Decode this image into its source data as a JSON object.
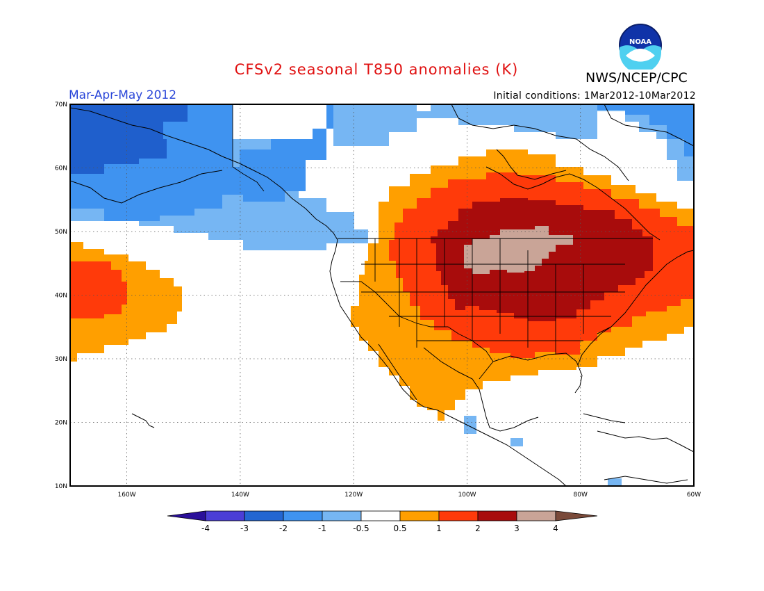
{
  "header": {
    "title": "CFSv2 seasonal T850 anomalies (K)",
    "org": "NWS/NCEP/CPC",
    "logo_text": "NOAA",
    "season": "Mar-Apr-May 2012",
    "initial_conditions": "Initial conditions: 1Mar2012-10Mar2012"
  },
  "axes": {
    "lat_labels": [
      "70N",
      "60N",
      "50N",
      "40N",
      "30N",
      "20N",
      "10N"
    ],
    "lon_labels": [
      "160W",
      "140W",
      "120W",
      "100W",
      "80W",
      "60W"
    ]
  },
  "colorbar": {
    "labels": [
      "-4",
      "-3",
      "-2",
      "-1",
      "-0.5",
      "0.5",
      "1",
      "2",
      "3",
      "4"
    ],
    "colors": [
      "#2a0f9a",
      "#4b3ed6",
      "#2366d1",
      "#3f93f0",
      "#76b6f3",
      "#ffffff",
      "#ff9f00",
      "#ff3a0a",
      "#a80c0c",
      "#c9a497",
      "#7a4a3a"
    ]
  },
  "map": {
    "region": "North America and northeast Pacific, 10N-70N, 172W-60W",
    "colors": {
      "cold_dark": "#1f5fcc",
      "cold_mid": "#3f93f0",
      "cold_light": "#76b6f3",
      "warm_orange": "#ff9f00",
      "warm_red": "#ff3a0a",
      "warm_dark": "#a80c0c",
      "warm_tan": "#c9a497"
    }
  }
}
